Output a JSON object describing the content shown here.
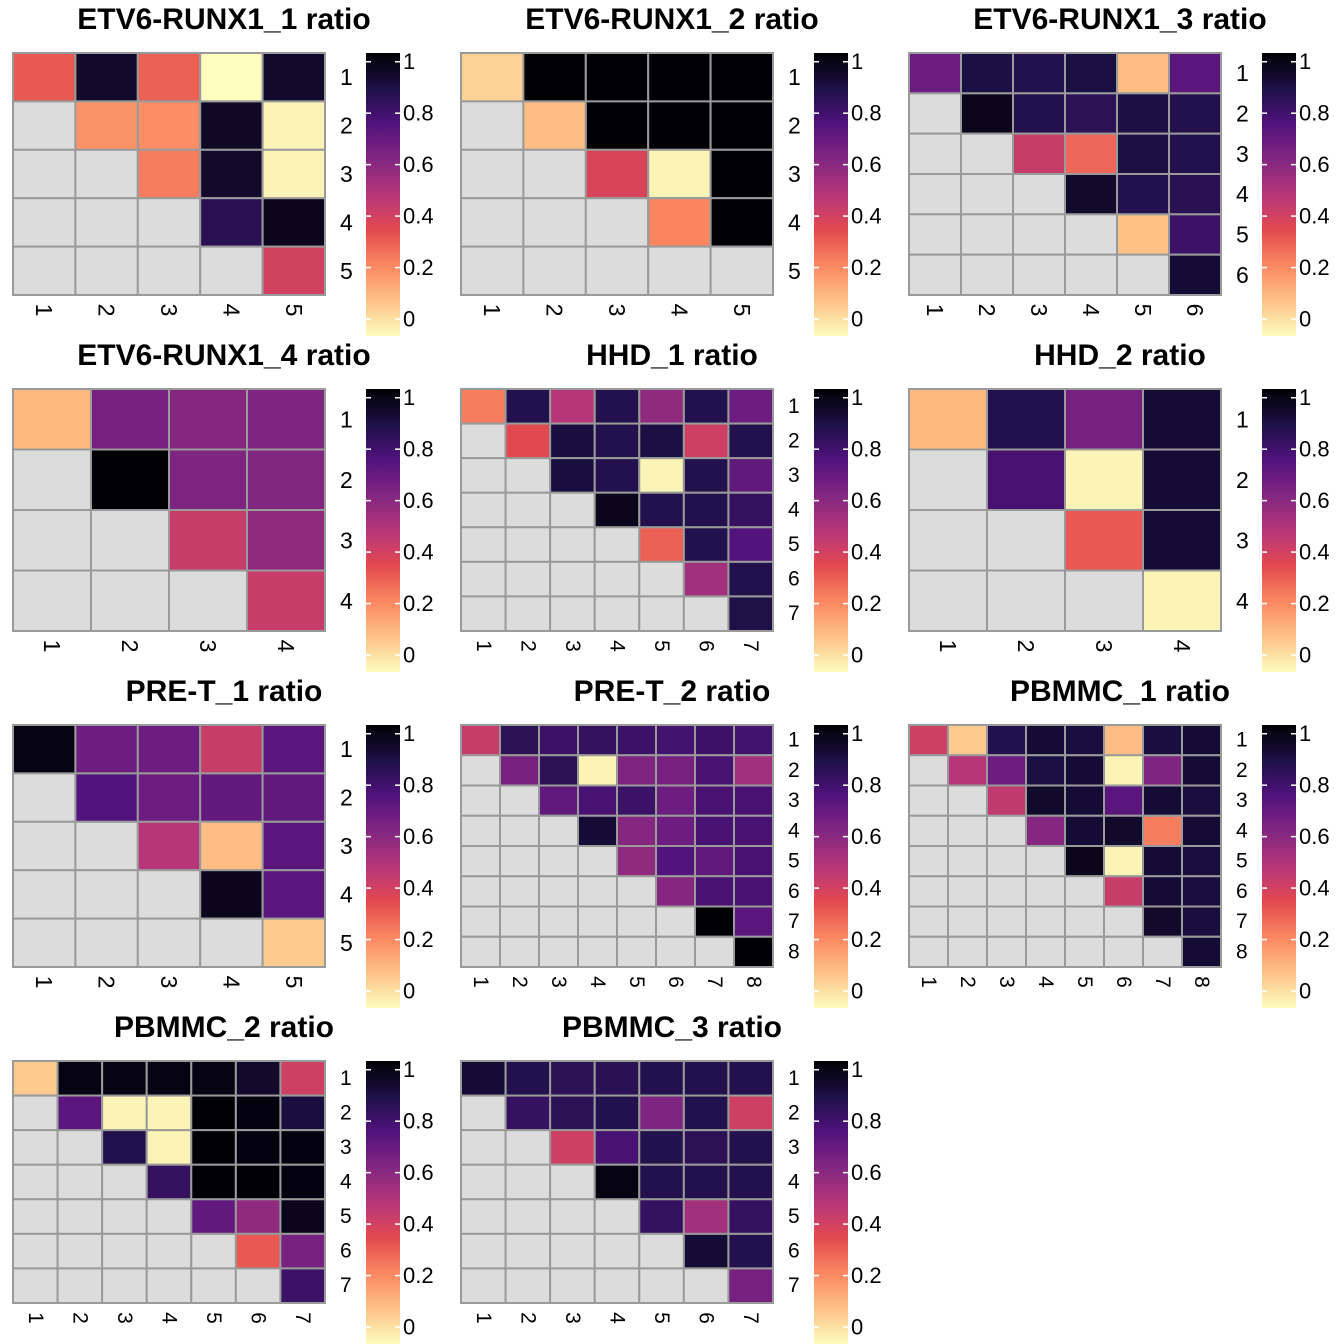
{
  "chart_data": [
    {
      "type": "heatmap",
      "title": "ETV6-RUNX1_1 ratio",
      "n": 5,
      "matrix": [
        [
          0.38,
          1.02,
          0.36,
          0.0,
          1.02
        ],
        [
          null,
          0.25,
          0.26,
          1.03,
          0.02
        ],
        [
          null,
          null,
          0.3,
          1.02,
          0.02
        ],
        [
          null,
          null,
          null,
          0.93,
          1.05
        ],
        [
          null,
          null,
          null,
          null,
          0.47
        ]
      ],
      "row_labels": [
        "1",
        "2",
        "3",
        "4",
        "5"
      ],
      "col_labels": [
        "1",
        "2",
        "3",
        "4",
        "5"
      ],
      "colorbar": {
        "ticks": [
          "0",
          "0.2",
          "0.4",
          "0.6",
          "0.8",
          "1"
        ],
        "range": [
          0,
          1.1
        ]
      }
    },
    {
      "type": "heatmap",
      "title": "ETV6-RUNX1_2 ratio",
      "n": 5,
      "matrix": [
        [
          0.1,
          1.1,
          1.1,
          1.1,
          1.1
        ],
        [
          null,
          0.15,
          1.1,
          1.1,
          1.1
        ],
        [
          null,
          null,
          0.45,
          0.02,
          1.1
        ],
        [
          null,
          null,
          null,
          0.28,
          1.1
        ],
        [
          null,
          null,
          null,
          null,
          null
        ]
      ],
      "row_labels": [
        "1",
        "2",
        "3",
        "4",
        "5"
      ],
      "col_labels": [
        "1",
        "2",
        "3",
        "4",
        "5"
      ],
      "colorbar": {
        "ticks": [
          "0",
          "0.2",
          "0.4",
          "0.6",
          "0.8",
          "1"
        ],
        "range": [
          0,
          1.1
        ]
      }
    },
    {
      "type": "heatmap",
      "title": "ETV6-RUNX1_3 ratio",
      "n": 6,
      "matrix": [
        [
          0.75,
          0.97,
          0.95,
          0.97,
          0.15,
          0.8
        ],
        [
          null,
          1.05,
          0.95,
          0.92,
          0.97,
          0.95
        ],
        [
          null,
          null,
          0.5,
          0.35,
          0.97,
          0.95
        ],
        [
          null,
          null,
          null,
          1.02,
          0.95,
          0.93
        ],
        [
          null,
          null,
          null,
          null,
          0.14,
          0.88
        ],
        [
          null,
          null,
          null,
          null,
          null,
          1.0
        ]
      ],
      "row_labels": [
        "1",
        "2",
        "3",
        "4",
        "5",
        "6"
      ],
      "col_labels": [
        "1",
        "2",
        "3",
        "4",
        "5",
        "6"
      ],
      "colorbar": {
        "ticks": [
          "0",
          "0.2",
          "0.4",
          "0.6",
          "0.8",
          "1"
        ],
        "range": [
          0,
          1.1
        ]
      }
    },
    {
      "type": "heatmap",
      "title": "ETV6-RUNX1_4 ratio",
      "n": 4,
      "matrix": [
        [
          0.16,
          0.72,
          0.68,
          0.7
        ],
        [
          null,
          1.1,
          0.7,
          0.69
        ],
        [
          null,
          null,
          0.5,
          0.65
        ],
        [
          null,
          null,
          null,
          0.5
        ]
      ],
      "row_labels": [
        "1",
        "2",
        "3",
        "4"
      ],
      "col_labels": [
        "1",
        "2",
        "3",
        "4"
      ],
      "colorbar": {
        "ticks": [
          "0",
          "0.2",
          "0.4",
          "0.6",
          "0.8",
          "1"
        ],
        "range": [
          0,
          1.1
        ]
      }
    },
    {
      "type": "heatmap",
      "title": "HHD_1 ratio",
      "n": 7,
      "matrix": [
        [
          0.3,
          0.95,
          0.55,
          0.95,
          0.65,
          0.95,
          0.75
        ],
        [
          null,
          0.42,
          0.98,
          0.95,
          0.97,
          0.48,
          0.95
        ],
        [
          null,
          null,
          0.98,
          0.95,
          0.02,
          0.95,
          0.78
        ],
        [
          null,
          null,
          null,
          1.05,
          0.95,
          0.95,
          0.9
        ],
        [
          null,
          null,
          null,
          null,
          0.36,
          0.95,
          0.82
        ],
        [
          null,
          null,
          null,
          null,
          null,
          0.6,
          0.95
        ],
        [
          null,
          null,
          null,
          null,
          null,
          null,
          0.96
        ]
      ],
      "row_labels": [
        "1",
        "2",
        "3",
        "4",
        "5",
        "6",
        "7"
      ],
      "col_labels": [
        "1",
        "2",
        "3",
        "4",
        "5",
        "6",
        "7"
      ],
      "colorbar": {
        "ticks": [
          "0",
          "0.2",
          "0.4",
          "0.6",
          "0.8",
          "1"
        ],
        "range": [
          0,
          1.1
        ]
      }
    },
    {
      "type": "heatmap",
      "title": "HHD_2 ratio",
      "n": 4,
      "matrix": [
        [
          0.16,
          0.95,
          0.72,
          1.0
        ],
        [
          null,
          0.85,
          0.02,
          1.0
        ],
        [
          null,
          null,
          0.38,
          1.0
        ],
        [
          null,
          null,
          null,
          0.02
        ]
      ],
      "row_labels": [
        "1",
        "2",
        "3",
        "4"
      ],
      "col_labels": [
        "1",
        "2",
        "3",
        "4"
      ],
      "colorbar": {
        "ticks": [
          "0",
          "0.2",
          "0.4",
          "0.6",
          "0.8",
          "1"
        ],
        "range": [
          0,
          1.1
        ]
      }
    },
    {
      "type": "heatmap",
      "title": "PRE-T_1 ratio",
      "n": 5,
      "matrix": [
        [
          1.07,
          0.75,
          0.75,
          0.5,
          0.8
        ],
        [
          null,
          0.82,
          0.75,
          0.78,
          0.78
        ],
        [
          null,
          null,
          0.55,
          0.15,
          0.8
        ],
        [
          null,
          null,
          null,
          1.05,
          0.8
        ],
        [
          null,
          null,
          null,
          null,
          0.12
        ]
      ],
      "row_labels": [
        "1",
        "2",
        "3",
        "4",
        "5"
      ],
      "col_labels": [
        "1",
        "2",
        "3",
        "4",
        "5"
      ],
      "colorbar": {
        "ticks": [
          "0",
          "0.2",
          "0.4",
          "0.6",
          "0.8",
          "1"
        ],
        "range": [
          0,
          1.1
        ]
      }
    },
    {
      "type": "heatmap",
      "title": "PRE-T_2 ratio",
      "n": 8,
      "matrix": [
        [
          0.5,
          0.92,
          0.88,
          0.9,
          0.88,
          0.86,
          0.88,
          0.86
        ],
        [
          null,
          0.72,
          0.92,
          0.02,
          0.7,
          0.72,
          0.85,
          0.6
        ],
        [
          null,
          null,
          0.78,
          0.85,
          0.88,
          0.75,
          0.85,
          0.85
        ],
        [
          null,
          null,
          null,
          1.0,
          0.68,
          0.75,
          0.85,
          0.85
        ],
        [
          null,
          null,
          null,
          null,
          0.65,
          0.82,
          0.78,
          0.85
        ],
        [
          null,
          null,
          null,
          null,
          null,
          0.68,
          0.85,
          0.85
        ],
        [
          null,
          null,
          null,
          null,
          null,
          null,
          1.1,
          0.8
        ],
        [
          null,
          null,
          null,
          null,
          null,
          null,
          null,
          1.1
        ]
      ],
      "row_labels": [
        "1",
        "2",
        "3",
        "4",
        "5",
        "6",
        "7",
        "8"
      ],
      "col_labels": [
        "1",
        "2",
        "3",
        "4",
        "5",
        "6",
        "7",
        "8"
      ],
      "colorbar": {
        "ticks": [
          "0",
          "0.2",
          "0.4",
          "0.6",
          "0.8",
          "1"
        ],
        "range": [
          0,
          1.1
        ]
      }
    },
    {
      "type": "heatmap",
      "title": "PBMMC_1 ratio",
      "n": 8,
      "matrix": [
        [
          0.48,
          0.12,
          0.95,
          1.0,
          0.98,
          0.15,
          0.98,
          1.0
        ],
        [
          null,
          0.55,
          0.75,
          0.97,
          1.0,
          0.02,
          0.7,
          1.0
        ],
        [
          null,
          null,
          0.52,
          1.02,
          1.0,
          0.8,
          1.0,
          0.98
        ],
        [
          null,
          null,
          null,
          0.68,
          1.0,
          1.02,
          0.3,
          1.0
        ],
        [
          null,
          null,
          null,
          null,
          1.05,
          0.02,
          1.0,
          0.98
        ],
        [
          null,
          null,
          null,
          null,
          null,
          0.5,
          1.0,
          0.98
        ],
        [
          null,
          null,
          null,
          null,
          null,
          null,
          1.02,
          0.98
        ],
        [
          null,
          null,
          null,
          null,
          null,
          null,
          null,
          1.0
        ]
      ],
      "row_labels": [
        "1",
        "2",
        "3",
        "4",
        "5",
        "6",
        "7",
        "8"
      ],
      "col_labels": [
        "1",
        "2",
        "3",
        "4",
        "5",
        "6",
        "7",
        "8"
      ],
      "colorbar": {
        "ticks": [
          "0",
          "0.2",
          "0.4",
          "0.6",
          "0.8",
          "1"
        ],
        "range": [
          0,
          1.1
        ]
      }
    },
    {
      "type": "heatmap",
      "title": "PBMMC_2 ratio",
      "n": 7,
      "matrix": [
        [
          0.12,
          1.07,
          1.07,
          1.07,
          1.07,
          1.02,
          0.48
        ],
        [
          null,
          0.8,
          0.02,
          0.02,
          1.1,
          1.08,
          0.98
        ],
        [
          null,
          null,
          0.95,
          0.02,
          1.1,
          1.08,
          1.08
        ],
        [
          null,
          null,
          null,
          0.9,
          1.1,
          1.1,
          1.08
        ],
        [
          null,
          null,
          null,
          null,
          0.78,
          0.65,
          1.05
        ],
        [
          null,
          null,
          null,
          null,
          null,
          0.38,
          0.72
        ],
        [
          null,
          null,
          null,
          null,
          null,
          null,
          0.88
        ]
      ],
      "row_labels": [
        "1",
        "2",
        "3",
        "4",
        "5",
        "6",
        "7"
      ],
      "col_labels": [
        "1",
        "2",
        "3",
        "4",
        "5",
        "6",
        "7"
      ],
      "colorbar": {
        "ticks": [
          "0",
          "0.2",
          "0.4",
          "0.6",
          "0.8",
          "1"
        ],
        "range": [
          0,
          1.1
        ]
      }
    },
    {
      "type": "heatmap",
      "title": "PBMMC_3 ratio",
      "n": 7,
      "matrix": [
        [
          1.0,
          0.95,
          0.92,
          0.93,
          0.95,
          0.95,
          0.95
        ],
        [
          null,
          0.9,
          0.92,
          0.95,
          0.7,
          0.95,
          0.48
        ],
        [
          null,
          null,
          0.48,
          0.85,
          0.95,
          0.92,
          0.95
        ],
        [
          null,
          null,
          null,
          1.07,
          0.95,
          0.95,
          0.95
        ],
        [
          null,
          null,
          null,
          null,
          0.9,
          0.6,
          0.9
        ],
        [
          null,
          null,
          null,
          null,
          null,
          1.0,
          0.95
        ],
        [
          null,
          null,
          null,
          null,
          null,
          null,
          0.72
        ]
      ],
      "row_labels": [
        "1",
        "2",
        "3",
        "4",
        "5",
        "6",
        "7"
      ],
      "col_labels": [
        "1",
        "2",
        "3",
        "4",
        "5",
        "6",
        "7"
      ],
      "colorbar": {
        "ticks": [
          "0",
          "0.2",
          "0.4",
          "0.6",
          "0.8",
          "1"
        ],
        "range": [
          0,
          1.1
        ]
      }
    }
  ],
  "colors": {
    "na_cell": "#dcdcdc",
    "cell_border": "#9a9a9a",
    "scale": [
      "#fcfdbf",
      "#fec287",
      "#fb8861",
      "#e3494e",
      "#b63679",
      "#822681",
      "#51127c",
      "#1d1147",
      "#000004"
    ]
  }
}
